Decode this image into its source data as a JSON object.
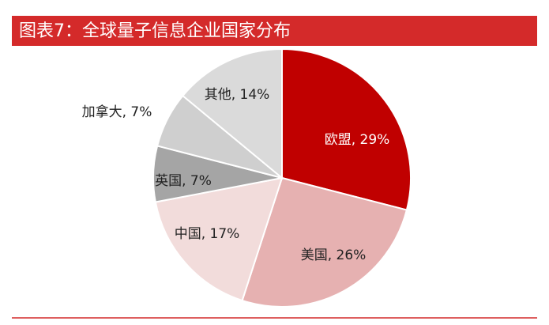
{
  "chart_data": {
    "type": "pie",
    "title": "图表7：全球量子信息企业国家分布",
    "values": [
      29,
      26,
      17,
      7,
      7,
      14
    ],
    "value_labels": [
      "欧盟, 29%",
      "美国, 26%",
      "中国, 17%",
      "英国, 7%",
      "加拿大, 7%",
      "其他, 14%"
    ],
    "colors": [
      "#c00000",
      "#e6b1b1",
      "#f2dcdb",
      "#a5a5a5",
      "#cfcfcf",
      "#dadada"
    ]
  }
}
